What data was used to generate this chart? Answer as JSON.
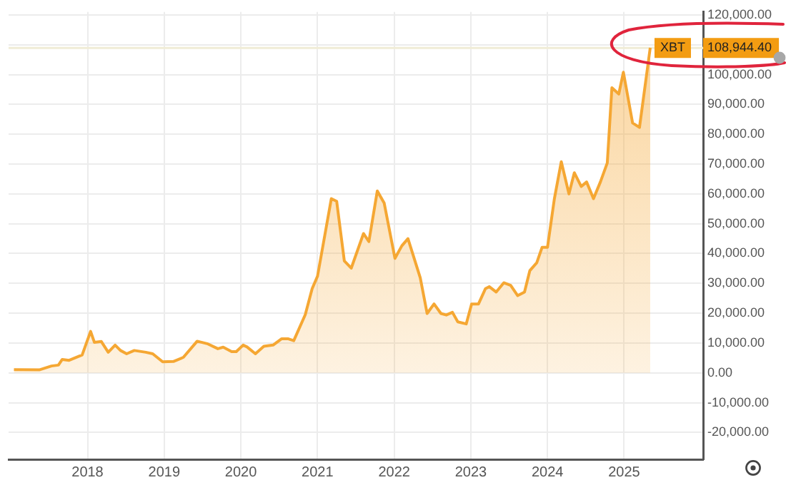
{
  "chart_data": {
    "type": "area",
    "x": [
      2017.04,
      2017.37,
      2017.53,
      2017.62,
      2017.67,
      2017.76,
      2017.93,
      2018.04,
      2018.09,
      2018.18,
      2018.27,
      2018.36,
      2018.43,
      2018.51,
      2018.61,
      2018.76,
      2018.85,
      2018.98,
      2019.12,
      2019.25,
      2019.43,
      2019.57,
      2019.7,
      2019.77,
      2019.88,
      2019.94,
      2020.03,
      2020.08,
      2020.19,
      2020.3,
      2020.42,
      2020.53,
      2020.62,
      2020.69,
      2020.84,
      2020.93,
      2021.0,
      2021.18,
      2021.25,
      2021.35,
      2021.44,
      2021.6,
      2021.67,
      2021.78,
      2021.87,
      2022.01,
      2022.1,
      2022.18,
      2022.34,
      2022.43,
      2022.52,
      2022.61,
      2022.68,
      2022.76,
      2022.83,
      2022.94,
      2023.01,
      2023.1,
      2023.19,
      2023.24,
      2023.33,
      2023.43,
      2023.52,
      2023.61,
      2023.7,
      2023.77,
      2023.86,
      2023.93,
      2024.0,
      2024.09,
      2024.18,
      2024.28,
      2024.35,
      2024.44,
      2024.51,
      2024.6,
      2024.69,
      2024.78,
      2024.84,
      2024.93,
      2024.99,
      2025.11,
      2025.2,
      2025.34
    ],
    "series": [
      {
        "color": "#f5a733",
        "values": [
          1100,
          1000,
          2300,
          2600,
          4500,
          4200,
          6000,
          13900,
          10200,
          10500,
          6900,
          9300,
          7500,
          6400,
          7500,
          6900,
          6400,
          3700,
          3800,
          5200,
          10600,
          9700,
          8100,
          8600,
          7100,
          7100,
          9300,
          8700,
          6400,
          8900,
          9300,
          11400,
          11400,
          10800,
          19500,
          28200,
          32400,
          58400,
          57500,
          37500,
          35100,
          46700,
          44000,
          61000,
          56900,
          38400,
          42600,
          45000,
          31900,
          19900,
          23100,
          19900,
          19400,
          20300,
          17100,
          16400,
          23100,
          23100,
          28200,
          28900,
          27100,
          30200,
          29300,
          25900,
          27100,
          34300,
          36900,
          42100,
          42100,
          58400,
          70800,
          60000,
          67100,
          62500,
          64000,
          58400,
          64000,
          70400,
          95600,
          93500,
          100800,
          83800,
          82300,
          109000
        ]
      }
    ],
    "xlim": [
      2016.97,
      2026.03
    ],
    "xticks": [
      2018,
      2019,
      2020,
      2021,
      2022,
      2023,
      2024,
      2025
    ],
    "ylim": [
      -29000,
      121000
    ],
    "yticks": [
      {
        "value": -20000,
        "label": "-20,000.00"
      },
      {
        "value": -10000,
        "label": "-10,000.00"
      },
      {
        "value": 0,
        "label": "0.00"
      },
      {
        "value": 10000,
        "label": "10,000.00"
      },
      {
        "value": 20000,
        "label": "20,000.00"
      },
      {
        "value": 30000,
        "label": "30,000.00"
      },
      {
        "value": 40000,
        "label": "40,000.00"
      },
      {
        "value": 50000,
        "label": "50,000.00"
      },
      {
        "value": 60000,
        "label": "60,000.00"
      },
      {
        "value": 70000,
        "label": "70,000.00"
      },
      {
        "value": 80000,
        "label": "80,000.00"
      },
      {
        "value": 90000,
        "label": "90,000.00"
      },
      {
        "value": 100000,
        "label": "100,000.00"
      },
      {
        "value": 110000,
        "label": null
      },
      {
        "value": 120000,
        "label": "120,000.00"
      }
    ],
    "ref_lines": [
      {
        "axis": "y",
        "value": 108944.4,
        "label": "108,944.40",
        "color": "#f0ecd6"
      }
    ],
    "annotations": [
      {
        "text": "XBT",
        "x": 2025.34,
        "y": 108944.4
      }
    ],
    "grid": true,
    "legend": false,
    "marker": "none",
    "line_style": "solid"
  }
}
